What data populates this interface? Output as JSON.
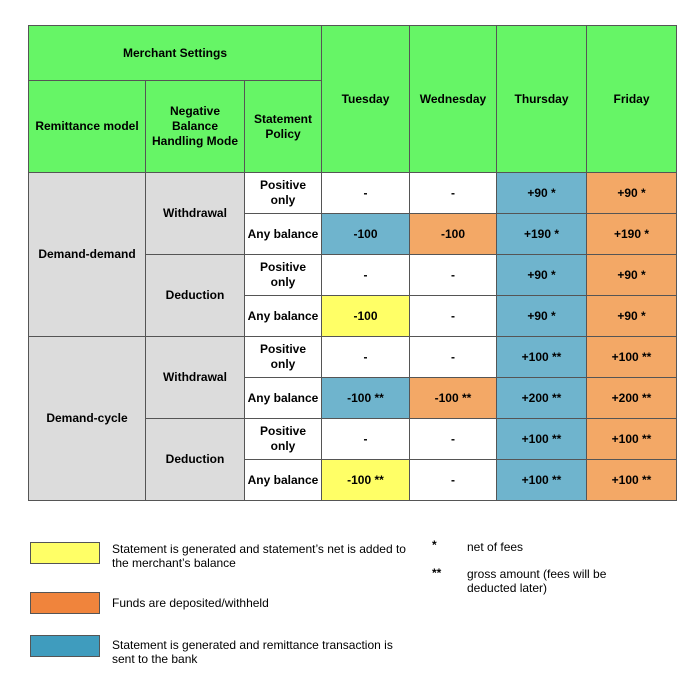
{
  "header": {
    "merchant_settings": "Merchant Settings",
    "remittance_model": "Remittance model",
    "negative_balance": "Negative Balance Handling Mode",
    "statement_policy": "Statement Policy",
    "days": [
      "Tuesday",
      "Wednesday",
      "Thursday",
      "Friday"
    ]
  },
  "groups": [
    {
      "model": "Demand-demand",
      "modes": [
        {
          "mode": "Withdrawal",
          "rows": [
            {
              "policy": "Positive only",
              "cells": [
                "-",
                "-",
                "+90 *",
                "+90 *"
              ]
            },
            {
              "policy": "Any balance",
              "cells": [
                "-100",
                "-100",
                "+190 *",
                "+190 *"
              ]
            }
          ]
        },
        {
          "mode": "Deduction",
          "rows": [
            {
              "policy": "Positive only",
              "cells": [
                "-",
                "-",
                "+90 *",
                "+90 *"
              ]
            },
            {
              "policy": "Any balance",
              "cells": [
                "-100",
                "-",
                "+90 *",
                "+90 *"
              ]
            }
          ]
        }
      ]
    },
    {
      "model": "Demand-cycle",
      "modes": [
        {
          "mode": "Withdrawal",
          "rows": [
            {
              "policy": "Positive only",
              "cells": [
                "-",
                "-",
                "+100 **",
                "+100 **"
              ]
            },
            {
              "policy": "Any balance",
              "cells": [
                "-100 **",
                "-100 **",
                "+200 **",
                "+200 **"
              ]
            }
          ]
        },
        {
          "mode": "Deduction",
          "rows": [
            {
              "policy": "Positive only",
              "cells": [
                "-",
                "-",
                "+100 **",
                "+100 **"
              ]
            },
            {
              "policy": "Any balance",
              "cells": [
                "-100 **",
                "-",
                "+100 **",
                "+100 **"
              ]
            }
          ]
        }
      ]
    }
  ],
  "legend": [
    {
      "color": "#ffff66",
      "text": "Statement is generated and statement’s net is added to the merchant’s balance"
    },
    {
      "color": "#f0843c",
      "text": "Funds are deposited/withheld"
    },
    {
      "color": "#3f9cbe",
      "text": "Statement is generated and remittance transaction is sent to the bank"
    }
  ],
  "notes": [
    {
      "mark": "*",
      "text": "net of fees"
    },
    {
      "mark": "**",
      "text": "gross amount (fees will be deducted later)"
    }
  ],
  "colors": {
    "header": "#66f566",
    "gray": "#dcdcdc",
    "blue": "#6fb4cd",
    "orange": "#f3a866",
    "yellow": "#ffff66"
  }
}
